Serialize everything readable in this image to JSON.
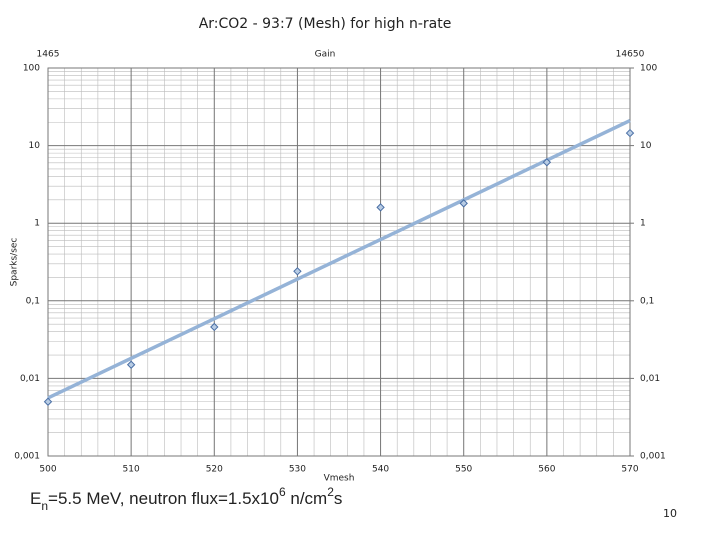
{
  "chart_data": {
    "type": "scatter",
    "title": "Ar:CO2 - 93:7 (Mesh) for high n-rate",
    "xlabel": "Vmesh",
    "ylabel": "Sparks/sec",
    "x2label": "Gain",
    "x": [
      500,
      510,
      520,
      530,
      540,
      550,
      560,
      570
    ],
    "series": [
      {
        "name": "Sparks",
        "color": "#4a6fa5",
        "values": [
          0.005,
          0.015,
          0.046,
          0.24,
          1.6,
          1.8,
          6.1,
          14.5
        ]
      }
    ],
    "trendline": {
      "color": "#95b3d7",
      "x": [
        500,
        570
      ],
      "values": [
        0.0056,
        21
      ]
    },
    "xlim": [
      500,
      570
    ],
    "xticks": [
      500,
      510,
      520,
      530,
      540,
      550,
      560,
      570
    ],
    "x2lim": [
      1465,
      14650
    ],
    "x2ticks": [
      1465,
      14650
    ],
    "ylim": [
      0.001,
      100
    ],
    "log_y": true,
    "grid": true,
    "minor_grid": true,
    "yticks": [
      {
        "value": 0.001,
        "label": "0,001"
      },
      {
        "value": 0.01,
        "label": "0,01"
      },
      {
        "value": 0.1,
        "label": "0,1"
      },
      1,
      10,
      100
    ],
    "y2ticks": [
      {
        "value": 0.001,
        "label": "0,001"
      },
      {
        "value": 0.01,
        "label": "0,01"
      },
      {
        "value": 0.1,
        "label": "0,1"
      },
      1,
      10,
      100
    ]
  },
  "annotation": [
    {
      "text": "E"
    },
    {
      "text": "n",
      "sub": true
    },
    {
      "text": "=5.5 MeV,   neutron flux=1.5x10"
    },
    {
      "text": "6",
      "sup": true
    },
    {
      "text": " n/cm"
    },
    {
      "text": "2",
      "sup": true
    },
    {
      "text": "s"
    }
  ],
  "page_number": "10"
}
